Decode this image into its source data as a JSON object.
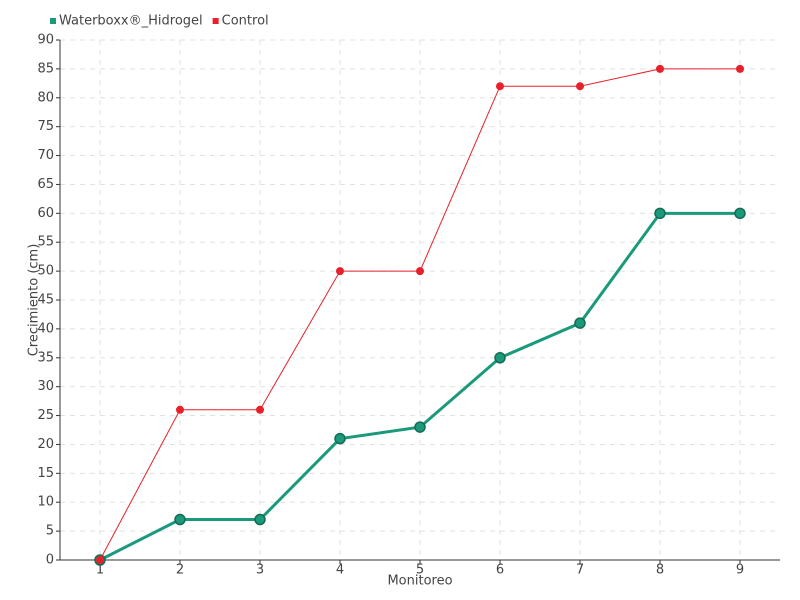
{
  "chart_data": {
    "type": "line",
    "categories": [
      "1",
      "2",
      "3",
      "4",
      "5",
      "6",
      "7",
      "8",
      "9"
    ],
    "x_label": "Monitoreo",
    "y_label": "Crecimiento (cm)",
    "series": [
      {
        "name": "Waterboxx®_Hidrogel",
        "color": "#1a9a7a",
        "values": [
          0,
          7,
          7,
          21,
          23,
          35,
          41,
          60,
          60
        ]
      },
      {
        "name": "Control",
        "color": "#e8202a",
        "values": [
          0,
          26,
          26,
          50,
          50,
          82,
          82,
          85,
          85
        ]
      }
    ],
    "ylim": [
      0,
      90
    ],
    "yticks": [
      0,
      5,
      10,
      15,
      20,
      25,
      30,
      35,
      40,
      45,
      50,
      55,
      60,
      65,
      70,
      75,
      80,
      85,
      90
    ],
    "grid": true,
    "legend": "top-left"
  }
}
